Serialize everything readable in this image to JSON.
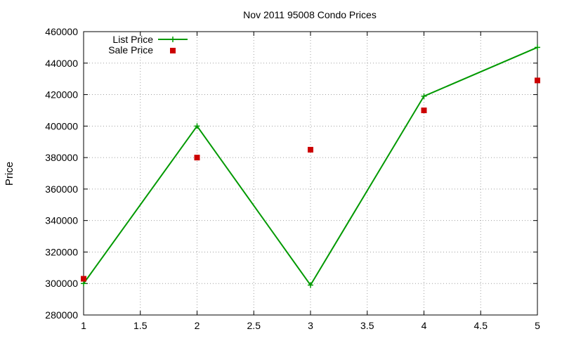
{
  "chart_data": {
    "type": "line",
    "title": "Nov 2011 95008 Condo Prices",
    "xlabel": "",
    "ylabel": "Price",
    "xlim": [
      1,
      5
    ],
    "ylim": [
      280000,
      460000
    ],
    "x_ticks": [
      1,
      1.5,
      2,
      2.5,
      3,
      3.5,
      4,
      4.5,
      5
    ],
    "y_ticks": [
      280000,
      300000,
      320000,
      340000,
      360000,
      380000,
      400000,
      420000,
      440000,
      460000
    ],
    "grid": true,
    "legend_position": "top-left",
    "series": [
      {
        "name": "List Price",
        "style": "line-with-plus-markers",
        "color": "#009900",
        "x": [
          1,
          2,
          3,
          4,
          5
        ],
        "y": [
          300000,
          400000,
          299000,
          419000,
          450000
        ]
      },
      {
        "name": "Sale Price",
        "style": "square-points",
        "color": "#cc0000",
        "x": [
          1,
          2,
          3,
          4,
          5
        ],
        "y": [
          303000,
          380000,
          385000,
          410000,
          429000
        ]
      }
    ]
  }
}
